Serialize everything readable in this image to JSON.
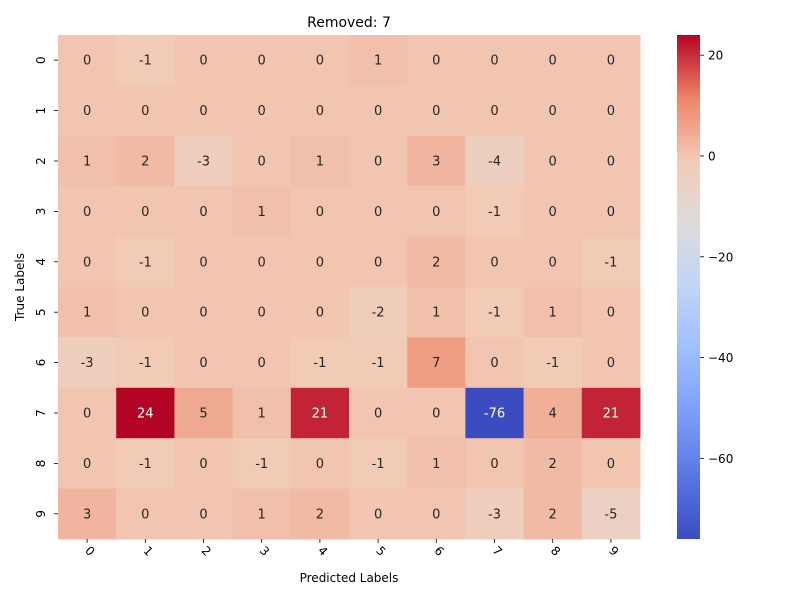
{
  "chart_data": {
    "type": "heatmap",
    "title": "Removed: 7",
    "xlabel": "Predicted Labels",
    "ylabel": "True Labels",
    "x_categories": [
      "0",
      "1",
      "2",
      "3",
      "4",
      "5",
      "6",
      "7",
      "8",
      "9"
    ],
    "y_categories": [
      "0",
      "1",
      "2",
      "3",
      "4",
      "5",
      "6",
      "7",
      "8",
      "9"
    ],
    "values": [
      [
        0,
        -1,
        0,
        0,
        0,
        1,
        0,
        0,
        0,
        0
      ],
      [
        0,
        0,
        0,
        0,
        0,
        0,
        0,
        0,
        0,
        0
      ],
      [
        1,
        2,
        -3,
        0,
        1,
        0,
        3,
        -4,
        0,
        0
      ],
      [
        0,
        0,
        0,
        1,
        0,
        0,
        0,
        -1,
        0,
        0
      ],
      [
        0,
        -1,
        0,
        0,
        0,
        0,
        2,
        0,
        0,
        -1
      ],
      [
        1,
        0,
        0,
        0,
        0,
        -2,
        1,
        -1,
        1,
        0
      ],
      [
        -3,
        -1,
        0,
        0,
        -1,
        -1,
        7,
        0,
        -1,
        0
      ],
      [
        0,
        24,
        5,
        1,
        21,
        0,
        0,
        -76,
        4,
        21
      ],
      [
        0,
        -1,
        0,
        -1,
        0,
        -1,
        1,
        0,
        2,
        0
      ],
      [
        3,
        0,
        0,
        1,
        2,
        0,
        0,
        -3,
        2,
        -5
      ]
    ],
    "colormap": "coolwarm",
    "vmin": -76,
    "vmax": 24,
    "colorbar_ticks": [
      20,
      0,
      -20,
      -40,
      -60
    ],
    "colorbar_tick_labels": [
      "20",
      "0",
      "−20",
      "−40",
      "−60"
    ],
    "annotate": true,
    "grid": false
  }
}
